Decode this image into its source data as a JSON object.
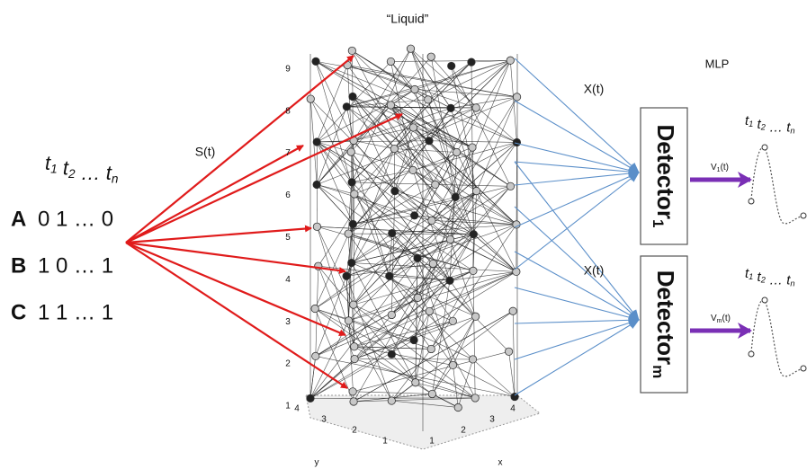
{
  "title": "“Liquid”",
  "mlp_label": "MLP",
  "input_label": "S(t)",
  "input_header": [
    {
      "base": "t",
      "sub": "1"
    },
    {
      "base": "t",
      "sub": "2"
    },
    "…",
    {
      "base": "t",
      "sub": "n"
    }
  ],
  "inputs": [
    {
      "name": "A",
      "pattern": "0 1 … 0"
    },
    {
      "name": "B",
      "pattern": "1 0 … 1"
    },
    {
      "name": "C",
      "pattern": "1 1 … 1"
    }
  ],
  "liquid_axes": {
    "z_ticks": [
      "1",
      "2",
      "3",
      "4",
      "5",
      "6",
      "7",
      "8",
      "9"
    ],
    "y_ticks": [
      "4",
      "3",
      "2",
      "1"
    ],
    "x_ticks": [
      "1",
      "2",
      "3",
      "4"
    ],
    "y_label": "y",
    "x_label": "x"
  },
  "readouts": [
    {
      "state_label": "X(t)",
      "detector": {
        "base": "Detector",
        "sub": "1"
      },
      "output": {
        "base": "V",
        "sub": "1",
        "suffix": "(t)"
      },
      "plot_header": [
        {
          "base": "t",
          "sub": "1"
        },
        {
          "base": "t",
          "sub": "2"
        },
        "…",
        {
          "base": "t",
          "sub": "n"
        }
      ]
    },
    {
      "state_label": "X(t)",
      "detector": {
        "base": "Detector",
        "sub": "m"
      },
      "output": {
        "base": "V",
        "sub": "m",
        "suffix": "(t)"
      },
      "plot_header": [
        {
          "base": "t",
          "sub": "1"
        },
        {
          "base": "t",
          "sub": "2"
        },
        "…",
        {
          "base": "t",
          "sub": "n"
        }
      ]
    }
  ]
}
